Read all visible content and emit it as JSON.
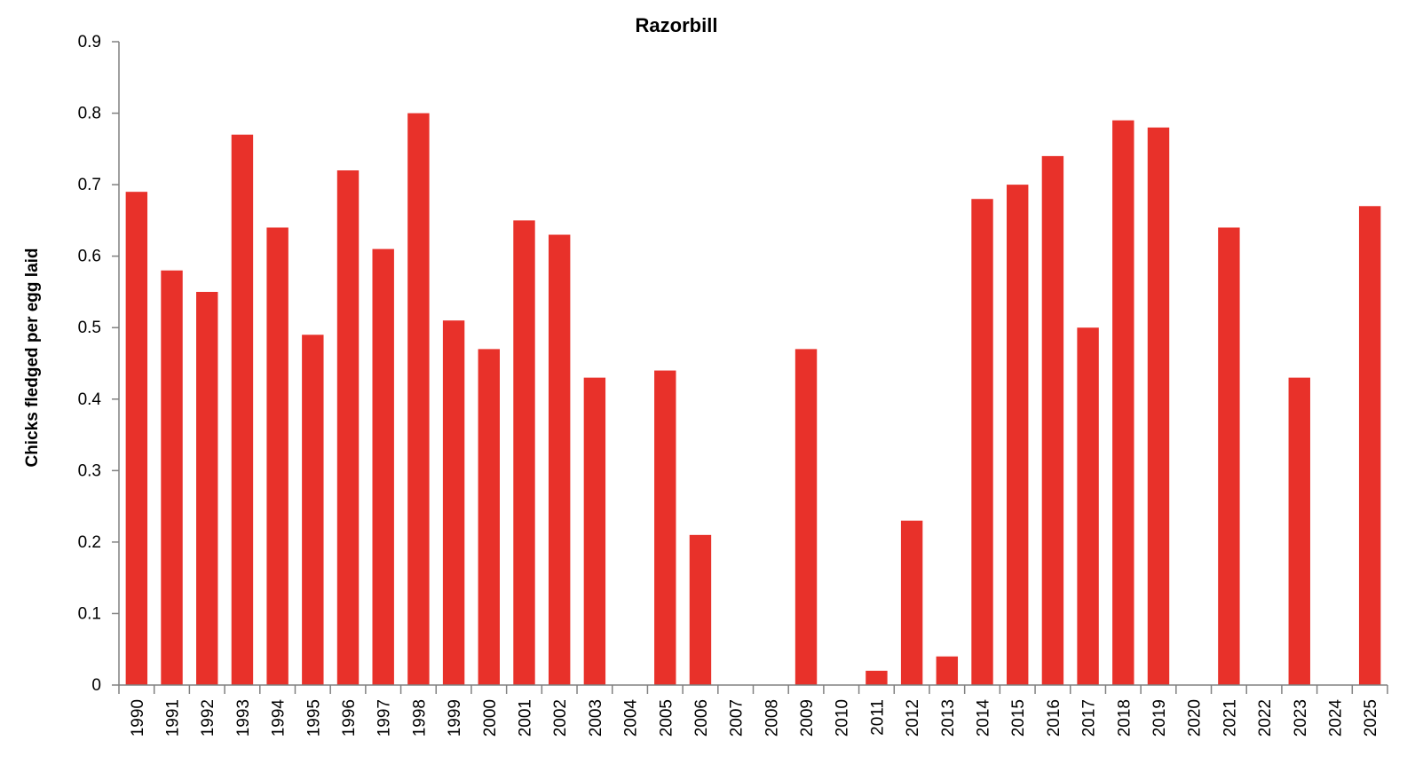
{
  "chart_data": {
    "type": "bar",
    "title": "Razorbill",
    "xlabel": "",
    "ylabel": "Chicks fledged per egg laid",
    "ylim": [
      0,
      0.9
    ],
    "yticks": [
      "0",
      "0.1",
      "0.2",
      "0.3",
      "0.4",
      "0.5",
      "0.6",
      "0.7",
      "0.8",
      "0.9"
    ],
    "grid": false,
    "bar_color": "#E8312A",
    "categories": [
      "1990",
      "1991",
      "1992",
      "1993",
      "1994",
      "1995",
      "1996",
      "1997",
      "1998",
      "1999",
      "2000",
      "2001",
      "2002",
      "2003",
      "2004",
      "2005",
      "2006",
      "2007",
      "2008",
      "2009",
      "2010",
      "2011",
      "2012",
      "2013",
      "2014",
      "2015",
      "2016",
      "2017",
      "2018",
      "2019",
      "2020",
      "2021",
      "2022",
      "2023",
      "2024",
      "2025"
    ],
    "values": [
      0.69,
      0.58,
      0.55,
      0.77,
      0.64,
      0.49,
      0.72,
      0.61,
      0.8,
      0.51,
      0.47,
      0.65,
      0.63,
      0.43,
      null,
      0.44,
      0.21,
      null,
      null,
      0.47,
      null,
      0.02,
      0.23,
      0.04,
      0.68,
      0.7,
      0.74,
      0.5,
      0.79,
      0.78,
      null,
      0.64,
      null,
      0.43,
      null,
      0.67
    ]
  }
}
